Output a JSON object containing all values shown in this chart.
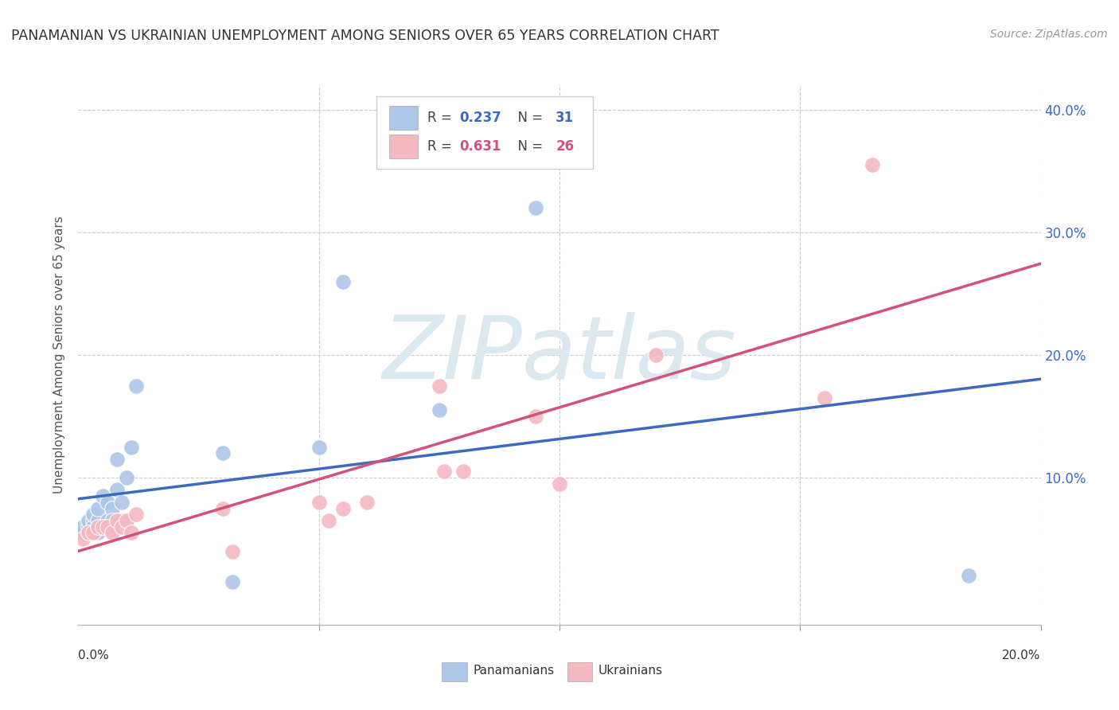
{
  "title": "PANAMANIAN VS UKRAINIAN UNEMPLOYMENT AMONG SENIORS OVER 65 YEARS CORRELATION CHART",
  "source": "Source: ZipAtlas.com",
  "ylabel": "Unemployment Among Seniors over 65 years",
  "background_color": "#ffffff",
  "blue_color": "#aec6e8",
  "pink_color": "#f4b8c1",
  "blue_line_color": "#3b6abf",
  "pink_line_color": "#d4527a",
  "r_blue": 0.237,
  "n_blue": 31,
  "r_pink": 0.631,
  "n_pink": 26,
  "xlim": [
    0.0,
    0.2
  ],
  "ylim": [
    -0.02,
    0.42
  ],
  "yticks": [
    0.0,
    0.1,
    0.2,
    0.3,
    0.4
  ],
  "ytick_labels": [
    "",
    "10.0%",
    "20.0%",
    "30.0%",
    "40.0%"
  ],
  "watermark": "ZIPatlas",
  "watermark_color": "#dce8f0",
  "pan_x": [
    0.001,
    0.001,
    0.002,
    0.002,
    0.003,
    0.003,
    0.003,
    0.004,
    0.004,
    0.004,
    0.005,
    0.005,
    0.006,
    0.006,
    0.007,
    0.007,
    0.007,
    0.008,
    0.008,
    0.009,
    0.009,
    0.01,
    0.011,
    0.012,
    0.03,
    0.032,
    0.05,
    0.055,
    0.075,
    0.185,
    0.095
  ],
  "pan_y": [
    0.055,
    0.06,
    0.06,
    0.065,
    0.065,
    0.06,
    0.07,
    0.055,
    0.065,
    0.075,
    0.06,
    0.085,
    0.08,
    0.065,
    0.075,
    0.06,
    0.065,
    0.09,
    0.115,
    0.08,
    0.065,
    0.1,
    0.125,
    0.175,
    0.12,
    0.015,
    0.125,
    0.26,
    0.155,
    0.02,
    0.32
  ],
  "ukr_x": [
    0.001,
    0.002,
    0.003,
    0.004,
    0.005,
    0.006,
    0.007,
    0.008,
    0.009,
    0.01,
    0.011,
    0.012,
    0.03,
    0.032,
    0.05,
    0.052,
    0.055,
    0.06,
    0.075,
    0.076,
    0.08,
    0.095,
    0.1,
    0.12,
    0.155,
    0.165
  ],
  "ukr_y": [
    0.05,
    0.055,
    0.055,
    0.06,
    0.06,
    0.06,
    0.055,
    0.065,
    0.06,
    0.065,
    0.055,
    0.07,
    0.075,
    0.04,
    0.08,
    0.065,
    0.075,
    0.08,
    0.175,
    0.105,
    0.105,
    0.15,
    0.095,
    0.2,
    0.165,
    0.355
  ]
}
